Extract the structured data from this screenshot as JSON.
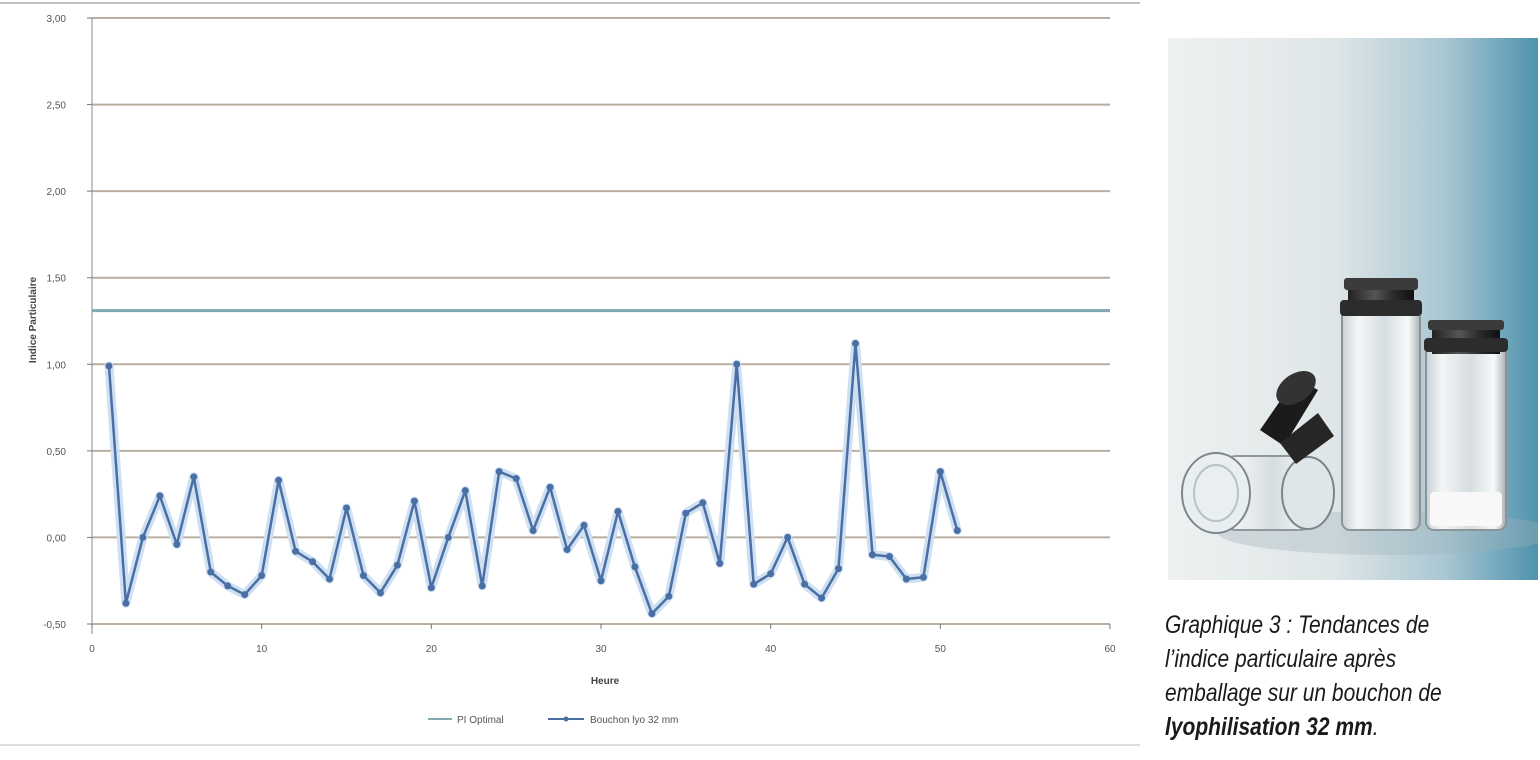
{
  "chart_data": {
    "type": "line",
    "title": "",
    "xlabel": "Heure",
    "ylabel": "Indice Particulaire",
    "xlim": [
      0,
      60
    ],
    "ylim": [
      -0.5,
      3.0
    ],
    "x_ticks": [
      0,
      10,
      20,
      30,
      40,
      50,
      60
    ],
    "y_ticks": [
      -0.5,
      0.0,
      0.5,
      1.0,
      1.5,
      2.0,
      2.5,
      3.0
    ],
    "y_tick_labels": [
      "-0,50",
      "0,00",
      "0,50",
      "1,00",
      "1,50",
      "2,00",
      "2,50",
      "3,00"
    ],
    "grid": true,
    "legend_position": "bottom",
    "series": [
      {
        "name": "PI Optimal",
        "color": "#7fa8b0",
        "x": [
          0,
          60
        ],
        "values": [
          1.31,
          1.31
        ]
      },
      {
        "name": "Bouchon lyo 32 mm",
        "color": "#4a6fa5",
        "x": [
          1,
          2,
          3,
          4,
          5,
          6,
          7,
          8,
          9,
          10,
          11,
          12,
          13,
          14,
          15,
          16,
          17,
          18,
          19,
          20,
          21,
          22,
          23,
          24,
          25,
          26,
          27,
          28,
          29,
          30,
          31,
          32,
          33,
          34,
          35,
          36,
          37,
          38,
          39,
          40,
          41,
          42,
          43,
          44,
          45,
          46,
          47,
          48,
          49,
          50,
          51
        ],
        "values": [
          0.99,
          -0.38,
          0.0,
          0.24,
          -0.04,
          0.35,
          -0.2,
          -0.28,
          -0.33,
          -0.22,
          0.33,
          -0.08,
          -0.14,
          -0.24,
          0.17,
          -0.22,
          -0.32,
          -0.16,
          0.21,
          -0.29,
          0.0,
          0.27,
          -0.28,
          0.38,
          0.34,
          0.04,
          0.29,
          -0.07,
          0.07,
          -0.25,
          0.15,
          -0.17,
          -0.44,
          -0.34,
          0.14,
          0.2,
          -0.15,
          1.0,
          -0.27,
          -0.21,
          0.0,
          -0.27,
          -0.35,
          -0.18,
          1.12,
          -0.1,
          -0.11,
          -0.24,
          -0.23,
          0.38,
          0.04
        ]
      }
    ]
  },
  "caption": {
    "line1": "Graphique 3 : Tendances de",
    "line2": "l’indice particulaire après",
    "line3": "emballage sur un bouchon de",
    "line4_bold": "lyophilisation 32 mm",
    "line4_end": "."
  },
  "colors": {
    "grid": "#b9aea0",
    "series_glow": "#cfe0f2",
    "photo_bg_left": "#e9eeee",
    "photo_bg_right": "#4f93ad"
  }
}
